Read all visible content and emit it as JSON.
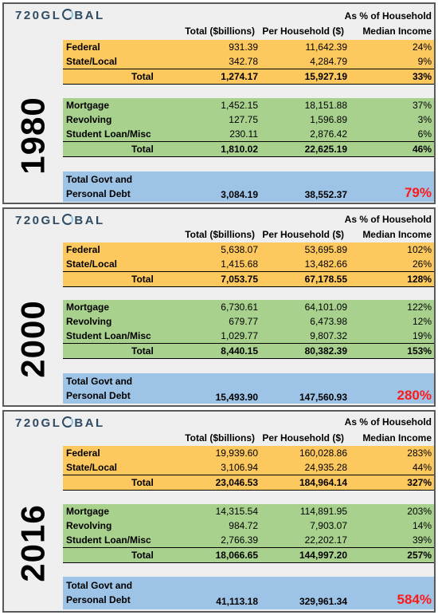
{
  "logo": "720GLOBAL",
  "headers": {
    "total": "Total ($billions)",
    "per_household": "Per Household ($)",
    "pct_line1": "As % of Household",
    "pct_line2": "Median Income"
  },
  "panels": [
    {
      "year": "1980",
      "govt": [
        {
          "label": "Federal",
          "total": "931.39",
          "per_hh": "11,642.39",
          "pct": "24%"
        },
        {
          "label": "State/Local",
          "total": "342.78",
          "per_hh": "4,284.79",
          "pct": "9%"
        }
      ],
      "govt_total": {
        "label": "Total",
        "total": "1,274.17",
        "per_hh": "15,927.19",
        "pct": "33%"
      },
      "personal": [
        {
          "label": "Mortgage",
          "total": "1,452.15",
          "per_hh": "18,151.88",
          "pct": "37%"
        },
        {
          "label": "Revolving",
          "total": "127.75",
          "per_hh": "1,596.89",
          "pct": "3%"
        },
        {
          "label": "Student Loan/Misc",
          "total": "230.11",
          "per_hh": "2,876.42",
          "pct": "6%"
        }
      ],
      "personal_total": {
        "label": "Total",
        "total": "1,810.02",
        "per_hh": "22,625.19",
        "pct": "46%"
      },
      "grand": {
        "label1": "Total Govt and",
        "label2": "Personal Debt",
        "total": "3,084.19",
        "per_hh": "38,552.37",
        "pct": "79%"
      }
    },
    {
      "year": "2000",
      "govt": [
        {
          "label": "Federal",
          "total": "5,638.07",
          "per_hh": "53,695.89",
          "pct": "102%"
        },
        {
          "label": "State/Local",
          "total": "1,415.68",
          "per_hh": "13,482.66",
          "pct": "26%"
        }
      ],
      "govt_total": {
        "label": "Total",
        "total": "7,053.75",
        "per_hh": "67,178.55",
        "pct": "128%"
      },
      "personal": [
        {
          "label": "Mortgage",
          "total": "6,730.61",
          "per_hh": "64,101.09",
          "pct": "122%"
        },
        {
          "label": "Revolving",
          "total": "679.77",
          "per_hh": "6,473.98",
          "pct": "12%"
        },
        {
          "label": "Student Loan/Misc",
          "total": "1,029.77",
          "per_hh": "9,807.32",
          "pct": "19%"
        }
      ],
      "personal_total": {
        "label": "Total",
        "total": "8,440.15",
        "per_hh": "80,382.39",
        "pct": "153%"
      },
      "grand": {
        "label1": "Total Govt and",
        "label2": "Personal Debt",
        "total": "15,493.90",
        "per_hh": "147,560.93",
        "pct": "280%"
      }
    },
    {
      "year": "2016",
      "govt": [
        {
          "label": "Federal",
          "total": "19,939.60",
          "per_hh": "160,028.86",
          "pct": "283%"
        },
        {
          "label": "State/Local",
          "total": "3,106.94",
          "per_hh": "24,935.28",
          "pct": "44%"
        }
      ],
      "govt_total": {
        "label": "Total",
        "total": "23,046.53",
        "per_hh": "184,964.14",
        "pct": "327%"
      },
      "personal": [
        {
          "label": "Mortgage",
          "total": "14,315.54",
          "per_hh": "114,891.95",
          "pct": "203%"
        },
        {
          "label": "Revolving",
          "total": "984.72",
          "per_hh": "7,903.07",
          "pct": "14%"
        },
        {
          "label": "Student Loan/Misc",
          "total": "2,766.39",
          "per_hh": "22,202.17",
          "pct": "39%"
        }
      ],
      "personal_total": {
        "label": "Total",
        "total": "18,066.65",
        "per_hh": "144,997.20",
        "pct": "257%"
      },
      "grand": {
        "label1": "Total Govt and",
        "label2": "Personal Debt",
        "total": "41,113.18",
        "per_hh": "329,961.34",
        "pct": "584%"
      }
    }
  ],
  "colors": {
    "govt_bg": "#fdc85e",
    "personal_bg": "#a9d18e",
    "grand_bg": "#9dc3e6",
    "grand_pct": "#ff1a1a"
  }
}
